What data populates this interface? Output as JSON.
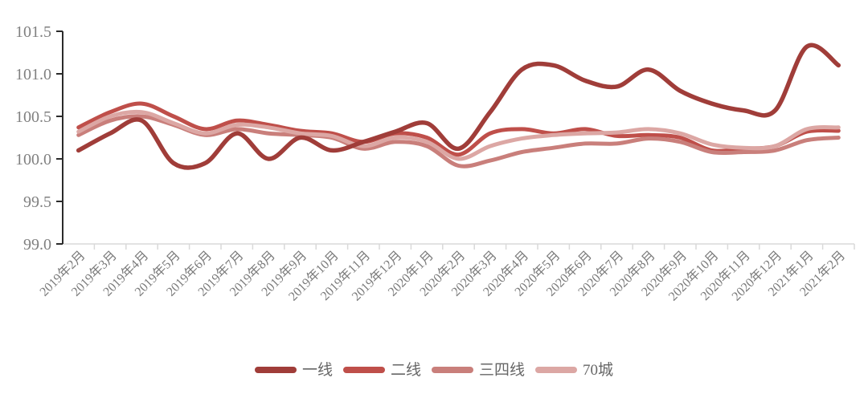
{
  "chart_data": {
    "type": "line",
    "title": "",
    "xlabel": "",
    "ylabel": "",
    "categories": [
      "2019年2月",
      "2019年3月",
      "2019年4月",
      "2019年5月",
      "2019年6月",
      "2019年7月",
      "2019年8月",
      "2019年9月",
      "2019年10月",
      "2019年11月",
      "2019年12月",
      "2020年1月",
      "2020年2月",
      "2020年3月",
      "2020年4月",
      "2020年5月",
      "2020年6月",
      "2020年7月",
      "2020年8月",
      "2020年9月",
      "2020年10月",
      "2020年11月",
      "2020年12月",
      "2021年1月",
      "2021年2月"
    ],
    "series": [
      {
        "name": "一线",
        "color": "#a03d39",
        "values": [
          100.1,
          100.3,
          100.45,
          99.95,
          99.95,
          100.3,
          100.0,
          100.25,
          100.1,
          100.2,
          100.32,
          100.42,
          100.12,
          100.55,
          101.05,
          101.1,
          100.92,
          100.85,
          101.05,
          100.8,
          100.65,
          100.57,
          100.57,
          101.32,
          101.1
        ]
      },
      {
        "name": "二线",
        "color": "#bf4f4a",
        "values": [
          100.37,
          100.55,
          100.65,
          100.5,
          100.35,
          100.45,
          100.4,
          100.33,
          100.3,
          100.2,
          100.3,
          100.25,
          100.05,
          100.3,
          100.35,
          100.3,
          100.35,
          100.27,
          100.28,
          100.25,
          100.1,
          100.12,
          100.15,
          100.32,
          100.33
        ]
      },
      {
        "name": "三四线",
        "color": "#c97f7b",
        "values": [
          100.28,
          100.45,
          100.5,
          100.4,
          100.28,
          100.35,
          100.3,
          100.28,
          100.25,
          100.12,
          100.2,
          100.15,
          99.92,
          99.98,
          100.08,
          100.13,
          100.18,
          100.18,
          100.24,
          100.2,
          100.08,
          100.08,
          100.1,
          100.22,
          100.25
        ]
      },
      {
        "name": "70城",
        "color": "#dca7a4",
        "values": [
          100.32,
          100.5,
          100.55,
          100.42,
          100.3,
          100.4,
          100.37,
          100.3,
          100.27,
          100.15,
          100.25,
          100.2,
          100.0,
          100.15,
          100.24,
          100.28,
          100.3,
          100.31,
          100.35,
          100.3,
          100.17,
          100.13,
          100.15,
          100.35,
          100.37
        ]
      }
    ],
    "ylim": [
      99.0,
      101.5
    ],
    "yticks": [
      "99.0",
      "99.5",
      "100.0",
      "100.5",
      "101.0",
      "101.5"
    ],
    "grid": false,
    "legend_position": "bottom"
  },
  "style": {
    "y_axis_color": "#2b2b2b",
    "x_axis_color": "#d9d9d9",
    "tick_label_color": "#808080",
    "x_label_color": "#7a7a7a",
    "legend_label_color": "#666666",
    "background": "#ffffff"
  }
}
